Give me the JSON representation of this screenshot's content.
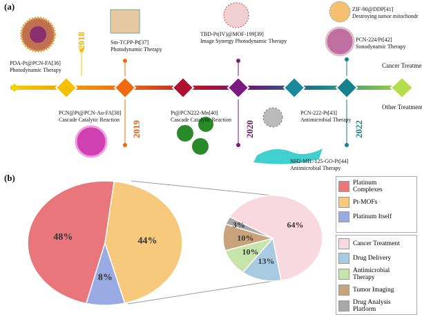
{
  "timeline": {
    "panel_label": "(a)",
    "years": [
      "2018",
      "2019",
      "2020",
      "2022"
    ],
    "events": [
      {
        "name": "PDA-Pt@PCN-FA[36]",
        "therapy": "Photodynamic Therapy"
      },
      {
        "name": "Sm-TCPP-Pt[37]",
        "therapy": "Photodynamic Therapy"
      },
      {
        "name": "PCN@Pt@PCN-Au-FA[38]",
        "therapy": "Cascade Catalytic Reaction"
      },
      {
        "name": "TBD-Pt(IV)@MOF-199[39]",
        "therapy": "Image Synergy Photodynamic Therapy"
      },
      {
        "name": "Pt@PCN222-Mn[40]",
        "therapy": "Cascade Catalytic Reaction"
      },
      {
        "name": "ZIF-90@DDP[41]",
        "therapy": "Destroying tumor mitochondr"
      },
      {
        "name": "PCN-224/Pt[42]",
        "therapy": "Sonodynamic Therapy"
      },
      {
        "name": "PCN-222-Pt[43]",
        "therapy": "Antimicrobial Therapy"
      },
      {
        "name": "NH2-MIL-125-GO-Pt[44]",
        "therapy": "Antimicrobial Therapy"
      }
    ],
    "tracks": [
      "Cancer Treatments",
      "Other Treatments"
    ]
  },
  "panel_b_label": "(b)",
  "chart_data": [
    {
      "type": "pie",
      "categories": [
        "Platinum Complexes",
        "Pt-MOFs",
        "Platinum Itself"
      ],
      "values": [
        48,
        44,
        8
      ],
      "value_labels": [
        "48%",
        "44%",
        "8%"
      ],
      "colors": [
        "#e8767a",
        "#f6c97c",
        "#9aabe3"
      ]
    },
    {
      "type": "pie",
      "categories": [
        "Cancer Treatment",
        "Drug Delivery",
        "Antimicrobial Therapy",
        "Tumor Imaging",
        "Drug Analysis Platform"
      ],
      "values": [
        64,
        13,
        10,
        10,
        3
      ],
      "value_labels": [
        "64%",
        "13%",
        "10%",
        "10%",
        "3%"
      ],
      "colors": [
        "#f8d9df",
        "#a9cbe2",
        "#c7e4aa",
        "#c9a37c",
        "#a8a8a8"
      ]
    }
  ]
}
